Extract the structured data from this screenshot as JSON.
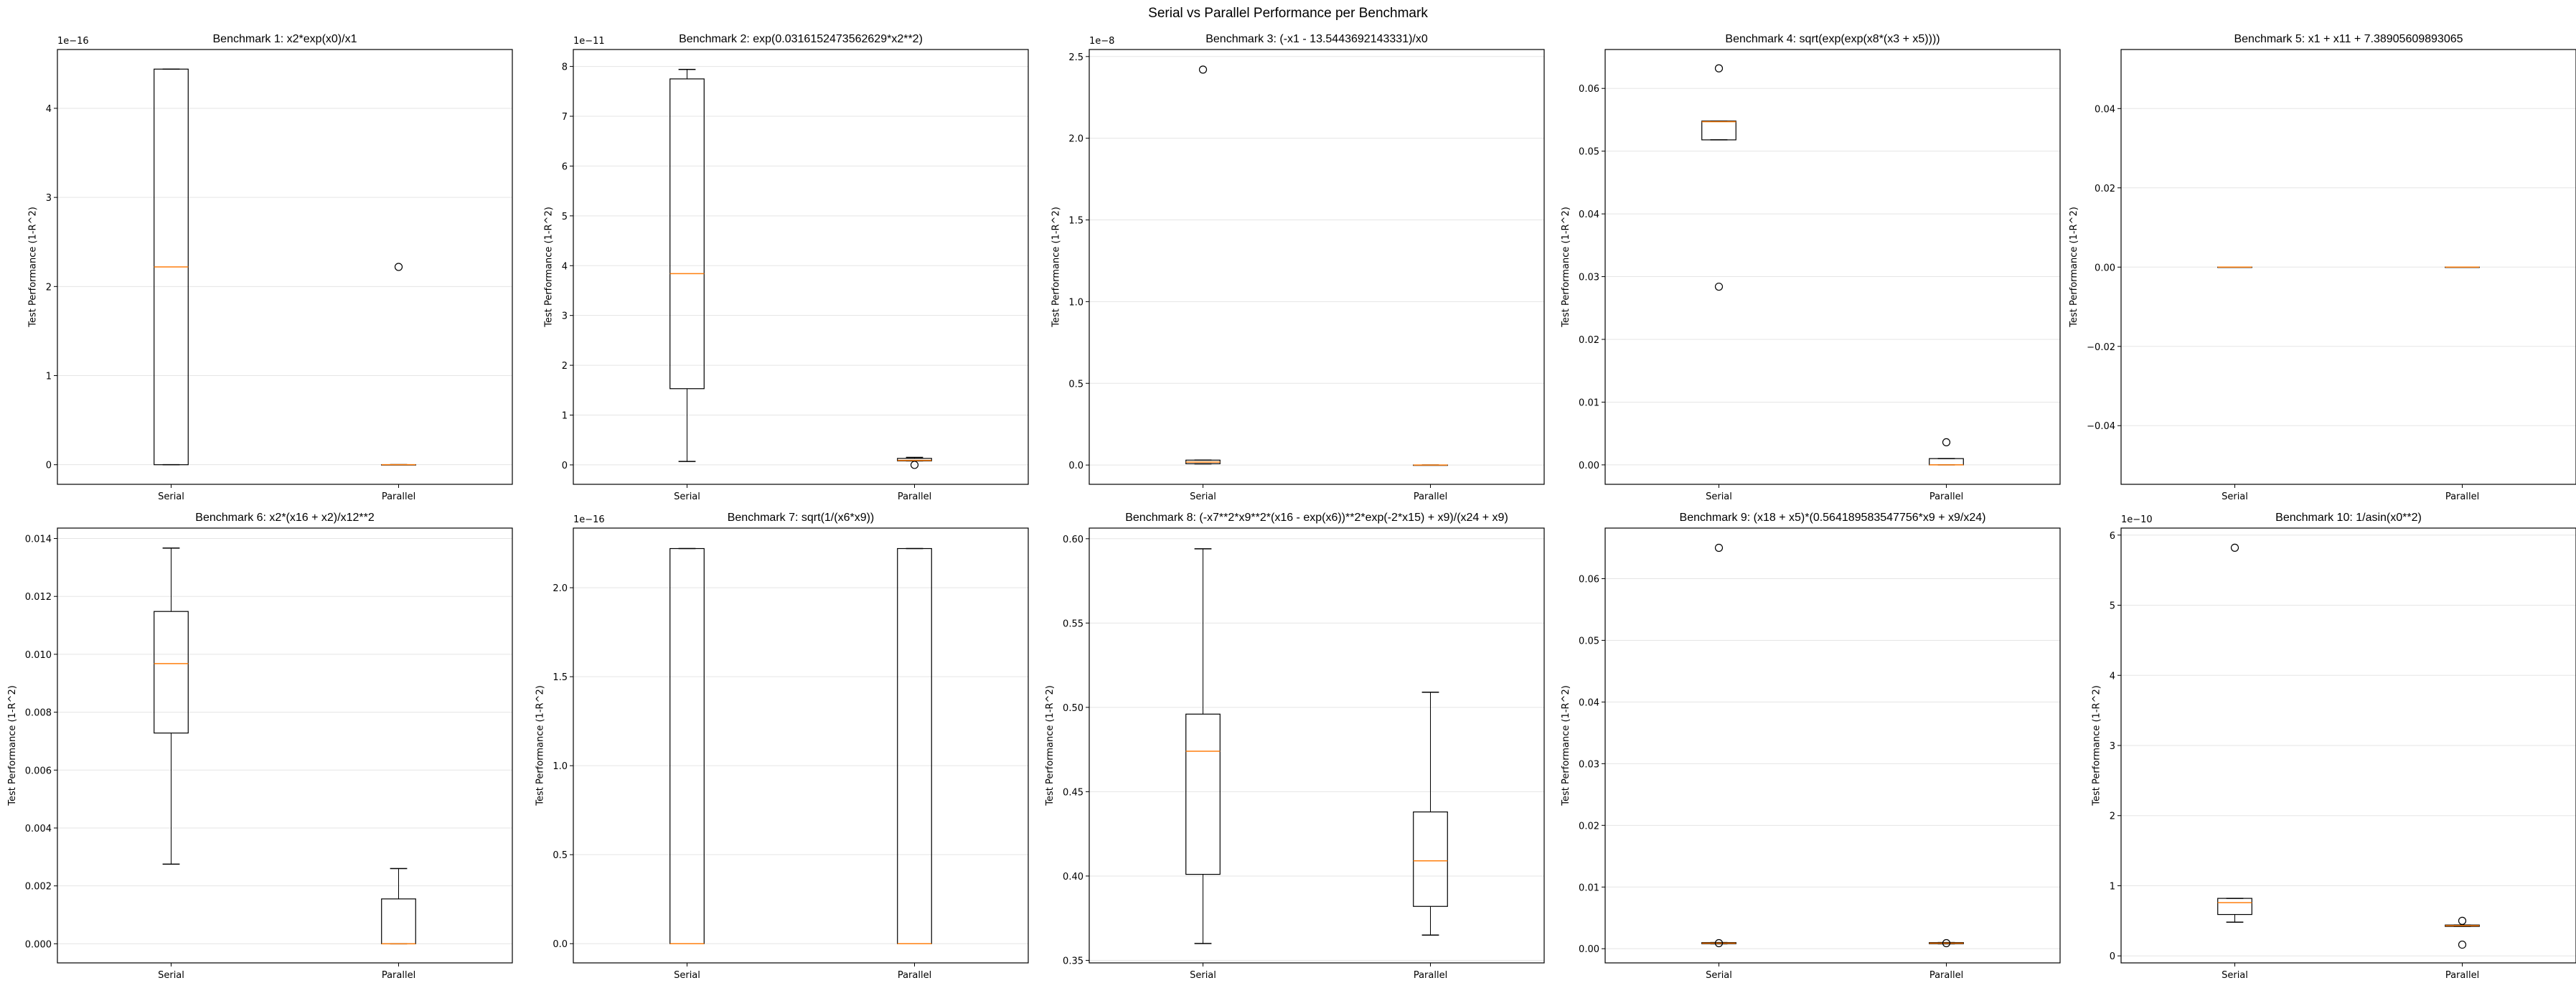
{
  "figure_title": "Serial vs Parallel Performance per Benchmark",
  "colors": {
    "median": "#ff7f0e",
    "box": "#000000",
    "grid": "#e5e5e5"
  },
  "chart_data": [
    {
      "type": "box",
      "title": "Benchmark 1: x2*exp(x0)/x1",
      "ylabel": "Test Performance (1-R^2)",
      "categories": [
        "Serial",
        "Parallel"
      ],
      "offset_text": "1e−16",
      "ylim": [
        -0.22,
        4.66
      ],
      "yticks": [
        0,
        1,
        2,
        3,
        4
      ],
      "ytick_labels": [
        "0",
        "1",
        "2",
        "3",
        "4"
      ],
      "grid": "y",
      "boxes": [
        {
          "whislo": 0,
          "q1": 0,
          "med": 2.22,
          "q3": 4.44,
          "whishi": 4.44,
          "fliers": []
        },
        {
          "whislo": 0,
          "q1": 0,
          "med": 0,
          "q3": 0,
          "whishi": 0,
          "fliers": [
            2.22
          ]
        }
      ]
    },
    {
      "type": "box",
      "title": "Benchmark 2: exp(0.0316152473562629*x2**2)",
      "ylabel": "Test Performance (1-R^2)",
      "categories": [
        "Serial",
        "Parallel"
      ],
      "offset_text": "1e−11",
      "ylim": [
        -0.39,
        8.34
      ],
      "yticks": [
        0,
        1,
        2,
        3,
        4,
        5,
        6,
        7,
        8
      ],
      "ytick_labels": [
        "0",
        "1",
        "2",
        "3",
        "4",
        "5",
        "6",
        "7",
        "8"
      ],
      "grid": "y",
      "boxes": [
        {
          "whislo": 0.07,
          "q1": 1.53,
          "med": 3.84,
          "q3": 7.75,
          "whishi": 7.94,
          "fliers": []
        },
        {
          "whislo": 0.08,
          "q1": 0.08,
          "med": 0.09,
          "q3": 0.13,
          "whishi": 0.15,
          "fliers": [
            0
          ]
        }
      ]
    },
    {
      "type": "box",
      "title": "Benchmark 3: (-x1 - 13.5443692143331)/x0",
      "ylabel": "Test Performance (1-R^2)",
      "categories": [
        "Serial",
        "Parallel"
      ],
      "offset_text": "1e−8",
      "ylim": [
        -0.118,
        2.543
      ],
      "yticks": [
        0,
        0.5,
        1,
        1.5,
        2,
        2.5
      ],
      "ytick_labels": [
        "0.0",
        "0.5",
        "1.0",
        "1.5",
        "2.0",
        "2.5"
      ],
      "grid": "y",
      "boxes": [
        {
          "whislo": 0.007,
          "q1": 0.008,
          "med": 0.018,
          "q3": 0.03,
          "whishi": 0.03,
          "fliers": [
            2.42
          ]
        },
        {
          "whislo": 0,
          "q1": 0,
          "med": 0,
          "q3": 0,
          "whishi": 0,
          "fliers": []
        }
      ]
    },
    {
      "type": "box",
      "title": "Benchmark 4: sqrt(exp(exp(x8*(x3 + x5))))",
      "ylabel": "Test Performance (1-R^2)",
      "categories": [
        "Serial",
        "Parallel"
      ],
      "offset_text": "",
      "ylim": [
        -0.0031,
        0.0662
      ],
      "yticks": [
        0,
        0.01,
        0.02,
        0.03,
        0.04,
        0.05,
        0.06
      ],
      "ytick_labels": [
        "0.00",
        "0.01",
        "0.02",
        "0.03",
        "0.04",
        "0.05",
        "0.06"
      ],
      "grid": "y",
      "boxes": [
        {
          "whislo": 0.0518,
          "q1": 0.0518,
          "med": 0.0547,
          "q3": 0.0548,
          "whishi": 0.0548,
          "fliers": [
            0.0632,
            0.0284
          ]
        },
        {
          "whislo": 0,
          "q1": 0,
          "med": 0,
          "q3": 0.001,
          "whishi": 0.001,
          "fliers": [
            0.0036
          ]
        }
      ]
    },
    {
      "type": "box",
      "title": "Benchmark 5: x1 + x11 + 7.38905609893065",
      "ylabel": "Test Performance (1-R^2)",
      "categories": [
        "Serial",
        "Parallel"
      ],
      "offset_text": "",
      "ylim": [
        -0.0548,
        0.0549
      ],
      "yticks": [
        -0.04,
        -0.02,
        0,
        0.02,
        0.04
      ],
      "ytick_labels": [
        "−0.04",
        "−0.02",
        "0.00",
        "0.02",
        "0.04"
      ],
      "grid": "y",
      "boxes": [
        {
          "whislo": 0,
          "q1": 0,
          "med": 0,
          "q3": 0,
          "whishi": 0,
          "fliers": []
        },
        {
          "whislo": 0,
          "q1": 0,
          "med": 0,
          "q3": 0,
          "whishi": 0,
          "fliers": []
        }
      ]
    },
    {
      "type": "box",
      "title": "Benchmark 6: x2*(x16 + x2)/x12**2",
      "ylabel": "Test Performance (1-R^2)",
      "categories": [
        "Serial",
        "Parallel"
      ],
      "offset_text": "",
      "ylim": [
        -0.00066,
        0.01436
      ],
      "yticks": [
        0,
        0.002,
        0.004,
        0.006,
        0.008,
        0.01,
        0.012,
        0.014
      ],
      "ytick_labels": [
        "0.000",
        "0.002",
        "0.004",
        "0.006",
        "0.008",
        "0.010",
        "0.012",
        "0.014"
      ],
      "grid": "y",
      "boxes": [
        {
          "whislo": 0.00275,
          "q1": 0.00728,
          "med": 0.00968,
          "q3": 0.01148,
          "whishi": 0.01367,
          "fliers": []
        },
        {
          "whislo": 0,
          "q1": 0,
          "med": 0,
          "q3": 0.00155,
          "whishi": 0.0026,
          "fliers": []
        }
      ]
    },
    {
      "type": "box",
      "title": "Benchmark 7: sqrt(1/(x6*x9))",
      "ylabel": "Test Performance (1-R^2)",
      "categories": [
        "Serial",
        "Parallel"
      ],
      "offset_text": "1e−16",
      "ylim": [
        -0.108,
        2.335
      ],
      "yticks": [
        0,
        0.5,
        1,
        1.5,
        2
      ],
      "ytick_labels": [
        "0.0",
        "0.5",
        "1.0",
        "1.5",
        "2.0"
      ],
      "grid": "y",
      "boxes": [
        {
          "whislo": 0,
          "q1": 0,
          "med": 0,
          "q3": 2.22,
          "whishi": 2.22,
          "fliers": []
        },
        {
          "whislo": 0,
          "q1": 0,
          "med": 0,
          "q3": 2.22,
          "whishi": 2.22,
          "fliers": []
        }
      ]
    },
    {
      "type": "box",
      "title": "Benchmark 8: (-x7**2*x9**2*(x16 - exp(x6))**2*exp(-2*x15) + x9)/(x24 + x9)",
      "ylabel": "Test Performance (1-R^2)",
      "categories": [
        "Serial",
        "Parallel"
      ],
      "offset_text": "",
      "ylim": [
        0.3485,
        0.6063
      ],
      "yticks": [
        0.35,
        0.4,
        0.45,
        0.5,
        0.55,
        0.6
      ],
      "ytick_labels": [
        "0.35",
        "0.40",
        "0.45",
        "0.50",
        "0.55",
        "0.60"
      ],
      "grid": "y",
      "boxes": [
        {
          "whislo": 0.36,
          "q1": 0.401,
          "med": 0.474,
          "q3": 0.496,
          "whishi": 0.594,
          "fliers": []
        },
        {
          "whislo": 0.365,
          "q1": 0.382,
          "med": 0.409,
          "q3": 0.438,
          "whishi": 0.509,
          "fliers": []
        }
      ]
    },
    {
      "type": "box",
      "title": "Benchmark 9: (x18 + x5)*(0.564189583547756*x9 + x9/x24)",
      "ylabel": "Test Performance (1-R^2)",
      "categories": [
        "Serial",
        "Parallel"
      ],
      "offset_text": "",
      "ylim": [
        -0.0023,
        0.0682
      ],
      "yticks": [
        0,
        0.01,
        0.02,
        0.03,
        0.04,
        0.05,
        0.06
      ],
      "ytick_labels": [
        "0.00",
        "0.01",
        "0.02",
        "0.03",
        "0.04",
        "0.05",
        "0.06"
      ],
      "grid": "y",
      "boxes": [
        {
          "whislo": 0.0008,
          "q1": 0.0008,
          "med": 0.0009,
          "q3": 0.001,
          "whishi": 0.001,
          "fliers": [
            0.065,
            0.0009
          ]
        },
        {
          "whislo": 0.0008,
          "q1": 0.0008,
          "med": 0.0009,
          "q3": 0.001,
          "whishi": 0.001,
          "fliers": [
            0.0009
          ]
        }
      ]
    },
    {
      "type": "box",
      "title": "Benchmark 10: 1/asin(x0**2)",
      "ylabel": "Test Performance (1-R^2)",
      "categories": [
        "Serial",
        "Parallel"
      ],
      "offset_text": "1e−10",
      "ylim": [
        -0.1,
        6.1
      ],
      "yticks": [
        0,
        1,
        2,
        3,
        4,
        5,
        6
      ],
      "ytick_labels": [
        "0",
        "1",
        "2",
        "3",
        "4",
        "5",
        "6"
      ],
      "grid": "y",
      "boxes": [
        {
          "whislo": 0.48,
          "q1": 0.59,
          "med": 0.76,
          "q3": 0.82,
          "whishi": 0.82,
          "fliers": [
            5.82
          ]
        },
        {
          "whislo": 0.42,
          "q1": 0.42,
          "med": 0.43,
          "q3": 0.44,
          "whishi": 0.44,
          "fliers": [
            0.5,
            0.16
          ]
        }
      ]
    }
  ]
}
